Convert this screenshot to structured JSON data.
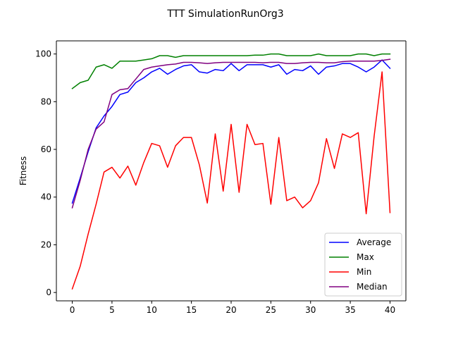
{
  "chart_data": {
    "type": "line",
    "title": "TTT SimulationRunOrg3",
    "xlabel": "",
    "ylabel": "Fitness",
    "xlim": [
      -2,
      42
    ],
    "ylim": [
      -3.5,
      105.5
    ],
    "xticks": [
      0,
      5,
      10,
      15,
      20,
      25,
      30,
      35,
      40
    ],
    "yticks": [
      0,
      20,
      40,
      60,
      80,
      100
    ],
    "grid": false,
    "legend_position": "lower-right",
    "x": [
      0,
      1,
      2,
      3,
      4,
      5,
      6,
      7,
      8,
      9,
      10,
      11,
      12,
      13,
      14,
      15,
      16,
      17,
      18,
      19,
      20,
      21,
      22,
      23,
      24,
      25,
      26,
      27,
      28,
      29,
      30,
      31,
      32,
      33,
      34,
      35,
      36,
      37,
      38,
      39,
      40
    ],
    "series": [
      {
        "name": "Average",
        "color": "#0000ff",
        "values": [
          37.5,
          48,
          59,
          69,
          74,
          78,
          83,
          84,
          88,
          90,
          92.5,
          94,
          91.5,
          93.5,
          95,
          95.5,
          92.5,
          92,
          93.5,
          93,
          96,
          93,
          95.5,
          95.5,
          95.5,
          94.5,
          95.5,
          91.5,
          93.5,
          93,
          95,
          91.5,
          94.5,
          95,
          96,
          96,
          94.5,
          92.5,
          94.5,
          97.5,
          94
        ]
      },
      {
        "name": "Max",
        "color": "#008000",
        "values": [
          85.5,
          88,
          89,
          94.5,
          95.5,
          94,
          97,
          97,
          97,
          97.5,
          98,
          99.3,
          99.3,
          98.6,
          99.3,
          99.3,
          99.3,
          99.3,
          99.3,
          99.3,
          99.3,
          99.3,
          99.3,
          99.5,
          99.5,
          100,
          100,
          99.3,
          99.3,
          99.3,
          99.3,
          100,
          99.3,
          99.3,
          99.3,
          99.3,
          100,
          100,
          99.3,
          100,
          100
        ]
      },
      {
        "name": "Min",
        "color": "#ff0000",
        "values": [
          1.5,
          11,
          24.5,
          37,
          50.5,
          52.5,
          48,
          53,
          45,
          54.5,
          62.5,
          61.5,
          52.5,
          61.5,
          65,
          65,
          53.5,
          37.5,
          66.5,
          42.5,
          70.5,
          42,
          70.5,
          62,
          62.5,
          37,
          65,
          38.5,
          40,
          35.5,
          38.5,
          46,
          64.5,
          52,
          66.5,
          65,
          67,
          33,
          65.5,
          92.5,
          33.5
        ]
      },
      {
        "name": "Median",
        "color": "#800080",
        "values": [
          35.5,
          47,
          60,
          68.5,
          71.5,
          83,
          85,
          85.5,
          89.5,
          93.5,
          94.5,
          95,
          95.5,
          95.8,
          96.5,
          96.5,
          96.3,
          96,
          96.3,
          96.5,
          96.5,
          96.5,
          96.5,
          96.5,
          96.3,
          96.5,
          96.5,
          96,
          96,
          96.3,
          96.5,
          96.5,
          96.3,
          96.3,
          96.8,
          97,
          97,
          97,
          97,
          97.3,
          97.8
        ]
      }
    ]
  }
}
